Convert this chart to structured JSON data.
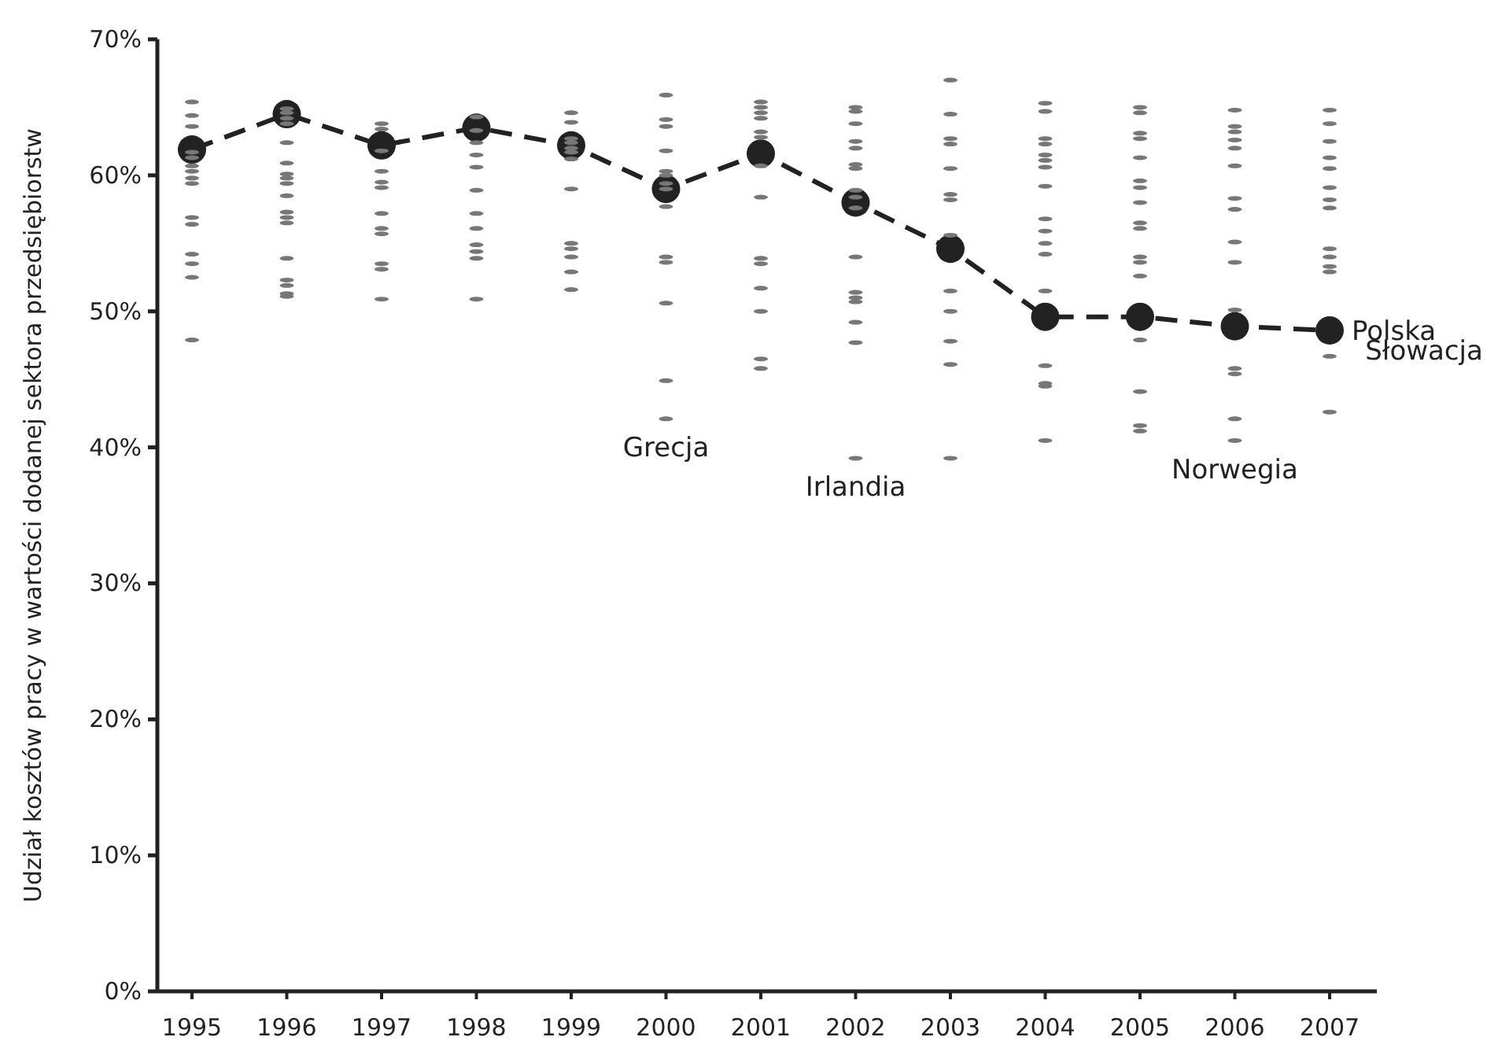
{
  "chart_data": {
    "type": "line",
    "ylabel": "Udział kosztów pracy w wartości dodanej sektora przedsiębiorstw",
    "categories": [
      "1995",
      "1996",
      "1997",
      "1998",
      "1999",
      "2000",
      "2001",
      "2002",
      "2003",
      "2004",
      "2005",
      "2006",
      "2007"
    ],
    "ylim": [
      0,
      70
    ],
    "yticks": [
      {
        "value": 0,
        "label": "0%"
      },
      {
        "value": 10,
        "label": "10%"
      },
      {
        "value": 20,
        "label": "20%"
      },
      {
        "value": 30,
        "label": "30%"
      },
      {
        "value": 40,
        "label": "40%"
      },
      {
        "value": 50,
        "label": "50%"
      },
      {
        "value": 60,
        "label": "60%"
      },
      {
        "value": 70,
        "label": "70%"
      }
    ],
    "grid": false,
    "series": [
      {
        "type": "scatter",
        "color": "#777777",
        "values": [
          65.4,
          64.9,
          63.8,
          64.3,
          64.6,
          65.9,
          65.4,
          65.0,
          67.0,
          65.3,
          65.0,
          64.8,
          64.8
        ]
      },
      {
        "type": "scatter",
        "color": "#777777",
        "values": [
          64.4,
          64.6,
          63.4,
          63.3,
          63.9,
          64.1,
          65.0,
          64.7,
          64.5,
          64.7,
          64.6,
          63.6,
          63.8
        ]
      },
      {
        "type": "scatter",
        "color": "#777777",
        "values": [
          63.6,
          64.2,
          61.8,
          62.4,
          62.7,
          63.6,
          64.6,
          63.8,
          62.7,
          62.7,
          63.1,
          63.2,
          62.5
        ]
      },
      {
        "type": "scatter",
        "color": "#777777",
        "values": [
          61.7,
          63.8,
          60.3,
          61.5,
          62.4,
          61.8,
          64.2,
          62.5,
          62.3,
          62.3,
          62.7,
          62.6,
          61.3
        ]
      },
      {
        "type": "scatter",
        "color": "#777777",
        "values": [
          61.3,
          62.4,
          59.5,
          60.6,
          62.0,
          60.3,
          63.2,
          62.0,
          60.5,
          61.5,
          61.3,
          62.0,
          60.5
        ]
      },
      {
        "type": "scatter",
        "color": "#777777",
        "values": [
          60.7,
          60.9,
          59.1,
          58.9,
          61.7,
          60.0,
          62.8,
          60.8,
          58.6,
          61.1,
          59.6,
          60.7,
          59.1
        ]
      },
      {
        "type": "scatter",
        "color": "#777777",
        "values": [
          60.3,
          60.1,
          57.2,
          57.2,
          61.2,
          59.4,
          60.7,
          60.5,
          58.2,
          60.6,
          59.1,
          58.3,
          58.2
        ]
      },
      {
        "type": "scatter",
        "color": "#777777",
        "values": [
          59.8,
          59.8,
          56.1,
          56.1,
          59.0,
          59.0,
          58.4,
          58.9,
          55.6,
          59.2,
          58.0,
          57.5,
          57.6
        ]
      },
      {
        "type": "scatter",
        "color": "#777777",
        "values": [
          59.4,
          59.4,
          55.7,
          54.9,
          55.0,
          57.7,
          53.9,
          58.4,
          51.5,
          56.8,
          56.5,
          55.1,
          54.6
        ]
      },
      {
        "type": "scatter",
        "color": "#777777",
        "values": [
          56.9,
          58.5,
          53.5,
          54.4,
          54.6,
          54.0,
          53.5,
          57.6,
          50.0,
          55.9,
          56.1,
          53.6,
          54.0
        ]
      },
      {
        "type": "scatter",
        "color": "#777777",
        "values": [
          56.4,
          57.3,
          53.1,
          53.9,
          54.0,
          53.6,
          51.7,
          54.0,
          47.8,
          55.0,
          54.0,
          50.1,
          53.3
        ]
      },
      {
        "type": "scatter",
        "color": "#777777",
        "values": [
          54.2,
          56.9,
          50.9,
          50.9,
          52.9,
          50.6,
          50.0,
          51.4,
          46.1,
          54.2,
          53.6,
          45.8,
          52.9
        ]
      },
      {
        "type": "scatter",
        "color": "#777777",
        "values": [
          53.5,
          56.5,
          null,
          null,
          51.6,
          44.9,
          46.5,
          51.0,
          39.2,
          51.5,
          52.6,
          45.4,
          46.7
        ]
      },
      {
        "type": "scatter",
        "color": "#777777",
        "values": [
          52.5,
          53.9,
          null,
          null,
          null,
          42.1,
          45.8,
          50.7,
          null,
          46.0,
          47.9,
          42.1,
          42.6
        ]
      },
      {
        "type": "scatter",
        "color": "#777777",
        "values": [
          47.9,
          52.3,
          null,
          null,
          null,
          null,
          null,
          49.2,
          null,
          44.7,
          44.1,
          40.5,
          null
        ]
      },
      {
        "type": "scatter",
        "color": "#777777",
        "values": [
          null,
          51.9,
          null,
          null,
          null,
          null,
          null,
          47.7,
          null,
          44.5,
          41.6,
          null,
          null
        ]
      },
      {
        "type": "scatter",
        "color": "#777777",
        "values": [
          null,
          51.3,
          null,
          null,
          null,
          null,
          null,
          39.2,
          null,
          40.5,
          41.2,
          null,
          null
        ]
      },
      {
        "type": "scatter",
        "color": "#777777",
        "values": [
          null,
          51.1,
          null,
          null,
          null,
          null,
          null,
          null,
          null,
          null,
          null,
          null,
          null
        ]
      },
      {
        "name": "Polska",
        "color": "#222222",
        "marker": "circle",
        "line_style": "dashed",
        "values": [
          61.9,
          64.5,
          62.2,
          63.5,
          62.2,
          59.0,
          61.6,
          58.0,
          54.6,
          49.6,
          49.6,
          48.9,
          48.6
        ]
      }
    ],
    "annotations": [
      {
        "text": "Grecja",
        "x": "2000",
        "y": 42.1
      },
      {
        "text": "Irlandia",
        "x": "2002",
        "y": 39.2
      },
      {
        "text": "Norwegia",
        "x": "2006",
        "y": 40.5
      },
      {
        "text": "Słowacja",
        "x": "2007",
        "y": 46.7
      }
    ]
  }
}
